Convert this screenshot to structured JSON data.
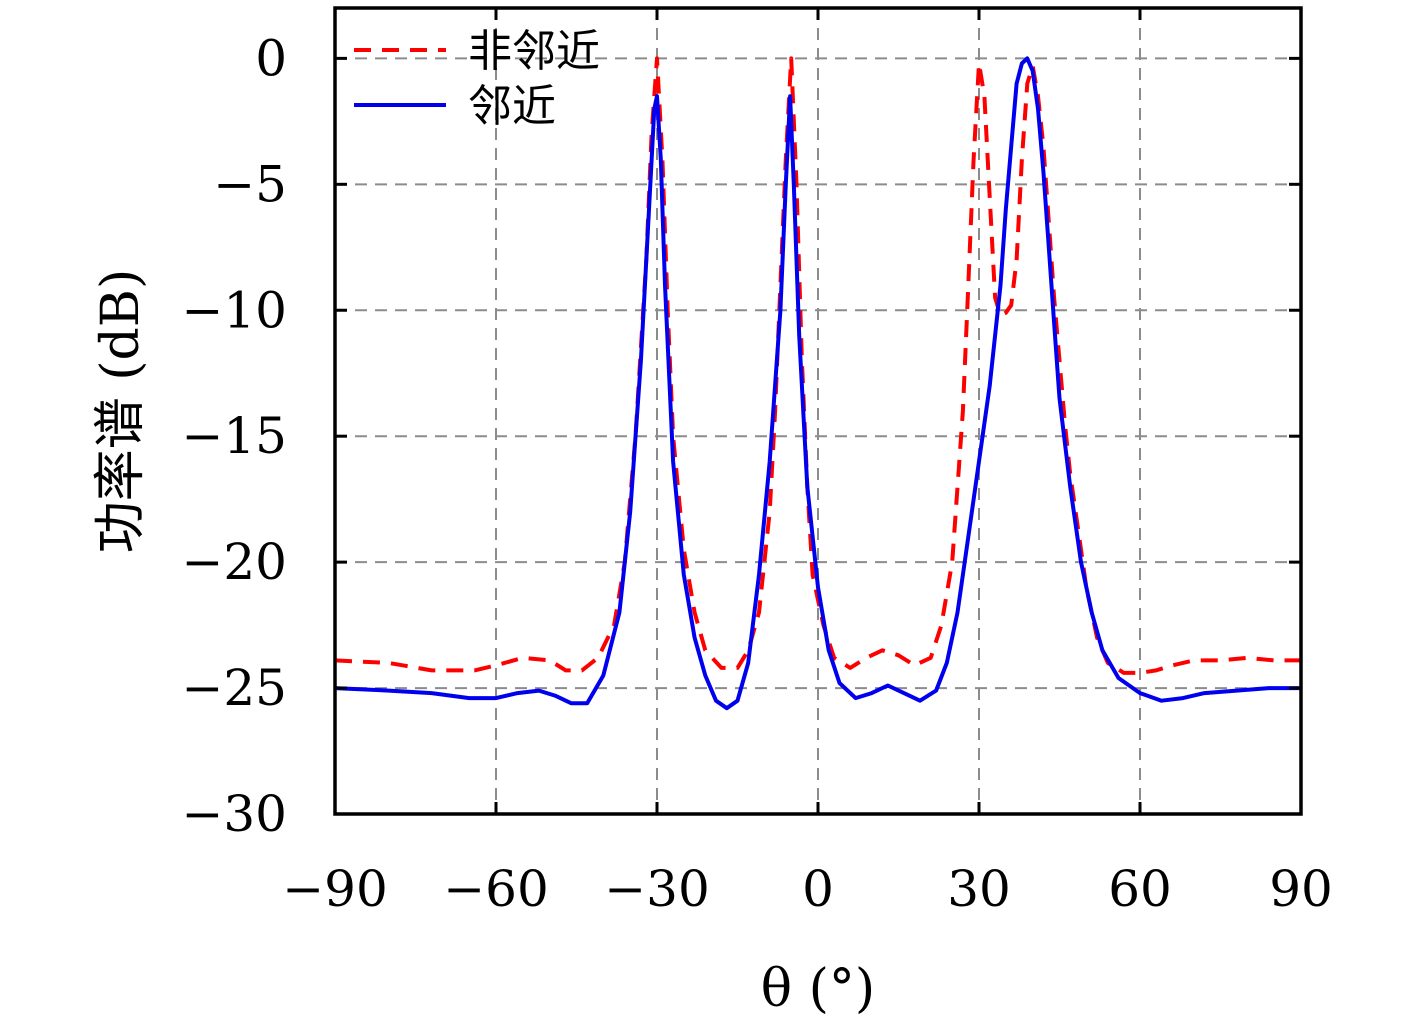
{
  "chart_data": {
    "type": "line",
    "xlabel": "θ (°)",
    "ylabel": "功率谱 (dB)",
    "xlim": [
      -90,
      90
    ],
    "ylim": [
      -30,
      2
    ],
    "xticks": [
      -90,
      -60,
      -30,
      0,
      30,
      60,
      90
    ],
    "yticks": [
      0,
      -5,
      -10,
      -15,
      -20,
      -25,
      -30
    ],
    "xtick_labels": [
      "−90",
      "−60",
      "−30",
      "0",
      "30",
      "60",
      "90"
    ],
    "ytick_labels": [
      "0",
      "−5",
      "−10",
      "−15",
      "−20",
      "−25",
      "−30"
    ],
    "grid": true,
    "legend_position": "top-left",
    "series": [
      {
        "name": "非邻近",
        "color": "#ff0000",
        "style": "dashed",
        "points": [
          [
            -90,
            -23.9
          ],
          [
            -80,
            -24.0
          ],
          [
            -72,
            -24.3
          ],
          [
            -64,
            -24.3
          ],
          [
            -60,
            -24.1
          ],
          [
            -55,
            -23.8
          ],
          [
            -50,
            -23.9
          ],
          [
            -47,
            -24.3
          ],
          [
            -44,
            -24.3
          ],
          [
            -41,
            -23.8
          ],
          [
            -38,
            -22.5
          ],
          [
            -36,
            -20.0
          ],
          [
            -34,
            -15.0
          ],
          [
            -32,
            -8.0
          ],
          [
            -31,
            -3.0
          ],
          [
            -30,
            0.0
          ],
          [
            -29,
            -4.0
          ],
          [
            -28,
            -10.0
          ],
          [
            -27,
            -15.0
          ],
          [
            -25,
            -19.5
          ],
          [
            -23,
            -22.0
          ],
          [
            -21,
            -23.5
          ],
          [
            -18,
            -24.2
          ],
          [
            -15,
            -24.2
          ],
          [
            -13,
            -23.5
          ],
          [
            -11,
            -22.0
          ],
          [
            -9,
            -18.0
          ],
          [
            -8,
            -14.0
          ],
          [
            -7,
            -9.0
          ],
          [
            -6,
            -4.0
          ],
          [
            -5,
            0.0
          ],
          [
            -4,
            -5.0
          ],
          [
            -3,
            -12.0
          ],
          [
            -2,
            -17.0
          ],
          [
            -1,
            -20.5
          ],
          [
            1,
            -22.5
          ],
          [
            3,
            -23.8
          ],
          [
            6,
            -24.2
          ],
          [
            9,
            -23.8
          ],
          [
            12,
            -23.5
          ],
          [
            15,
            -23.7
          ],
          [
            18,
            -24.1
          ],
          [
            21,
            -23.8
          ],
          [
            23,
            -22.5
          ],
          [
            25,
            -20.0
          ],
          [
            27,
            -14.0
          ],
          [
            28,
            -9.0
          ],
          [
            29,
            -4.0
          ],
          [
            30,
            -0.2
          ],
          [
            31,
            -1.5
          ],
          [
            32,
            -5.5
          ],
          [
            33,
            -9.5
          ],
          [
            34,
            -10.2
          ],
          [
            35,
            -10.1
          ],
          [
            36,
            -9.8
          ],
          [
            37,
            -8.0
          ],
          [
            38,
            -4.0
          ],
          [
            39,
            -1.0
          ],
          [
            40,
            -0.3
          ],
          [
            41,
            -1.5
          ],
          [
            42,
            -3.5
          ],
          [
            43,
            -6.5
          ],
          [
            44,
            -9.5
          ],
          [
            45,
            -12.0
          ],
          [
            46,
            -14.5
          ],
          [
            47,
            -16.5
          ],
          [
            48,
            -18.0
          ],
          [
            49,
            -19.5
          ],
          [
            50,
            -21.0
          ],
          [
            52,
            -23.0
          ],
          [
            54,
            -24.0
          ],
          [
            57,
            -24.4
          ],
          [
            60,
            -24.4
          ],
          [
            63,
            -24.3
          ],
          [
            66,
            -24.1
          ],
          [
            70,
            -23.9
          ],
          [
            75,
            -23.9
          ],
          [
            80,
            -23.8
          ],
          [
            85,
            -23.9
          ],
          [
            90,
            -23.9
          ]
        ]
      },
      {
        "name": "邻近",
        "color": "#0000ee",
        "style": "solid",
        "points": [
          [
            -90,
            -25.0
          ],
          [
            -80,
            -25.1
          ],
          [
            -72,
            -25.2
          ],
          [
            -65,
            -25.4
          ],
          [
            -60,
            -25.4
          ],
          [
            -56,
            -25.2
          ],
          [
            -52,
            -25.1
          ],
          [
            -49,
            -25.3
          ],
          [
            -46,
            -25.6
          ],
          [
            -43,
            -25.6
          ],
          [
            -40,
            -24.5
          ],
          [
            -37,
            -22.0
          ],
          [
            -35,
            -18.0
          ],
          [
            -33,
            -12.0
          ],
          [
            -31.5,
            -6.0
          ],
          [
            -30.5,
            -2.0
          ],
          [
            -30,
            -1.5
          ],
          [
            -29.3,
            -4.0
          ],
          [
            -28.5,
            -9.0
          ],
          [
            -27,
            -16.0
          ],
          [
            -25,
            -20.5
          ],
          [
            -23,
            -23.0
          ],
          [
            -21,
            -24.5
          ],
          [
            -19,
            -25.5
          ],
          [
            -17,
            -25.8
          ],
          [
            -15,
            -25.5
          ],
          [
            -13,
            -24.0
          ],
          [
            -11,
            -20.5
          ],
          [
            -9,
            -16.0
          ],
          [
            -7,
            -10.0
          ],
          [
            -6,
            -5.0
          ],
          [
            -5.2,
            -1.5
          ],
          [
            -4.5,
            -5.0
          ],
          [
            -3.5,
            -11.0
          ],
          [
            -2,
            -17.0
          ],
          [
            0,
            -21.0
          ],
          [
            2,
            -23.5
          ],
          [
            4,
            -24.8
          ],
          [
            7,
            -25.4
          ],
          [
            10,
            -25.2
          ],
          [
            13,
            -24.9
          ],
          [
            16,
            -25.2
          ],
          [
            19,
            -25.5
          ],
          [
            22,
            -25.1
          ],
          [
            24,
            -24.0
          ],
          [
            26,
            -22.0
          ],
          [
            28,
            -19.0
          ],
          [
            30,
            -16.0
          ],
          [
            32,
            -13.0
          ],
          [
            34,
            -9.0
          ],
          [
            35,
            -6.0
          ],
          [
            36,
            -3.5
          ],
          [
            37,
            -1.0
          ],
          [
            38,
            -0.2
          ],
          [
            39,
            0.0
          ],
          [
            40,
            -0.5
          ],
          [
            41,
            -2.0
          ],
          [
            42,
            -4.5
          ],
          [
            43,
            -7.5
          ],
          [
            44,
            -10.5
          ],
          [
            45,
            -13.5
          ],
          [
            47,
            -17.0
          ],
          [
            49,
            -20.0
          ],
          [
            51,
            -22.0
          ],
          [
            53,
            -23.5
          ],
          [
            56,
            -24.6
          ],
          [
            60,
            -25.2
          ],
          [
            64,
            -25.5
          ],
          [
            68,
            -25.4
          ],
          [
            72,
            -25.2
          ],
          [
            78,
            -25.1
          ],
          [
            84,
            -25.0
          ],
          [
            90,
            -25.0
          ]
        ]
      }
    ]
  }
}
